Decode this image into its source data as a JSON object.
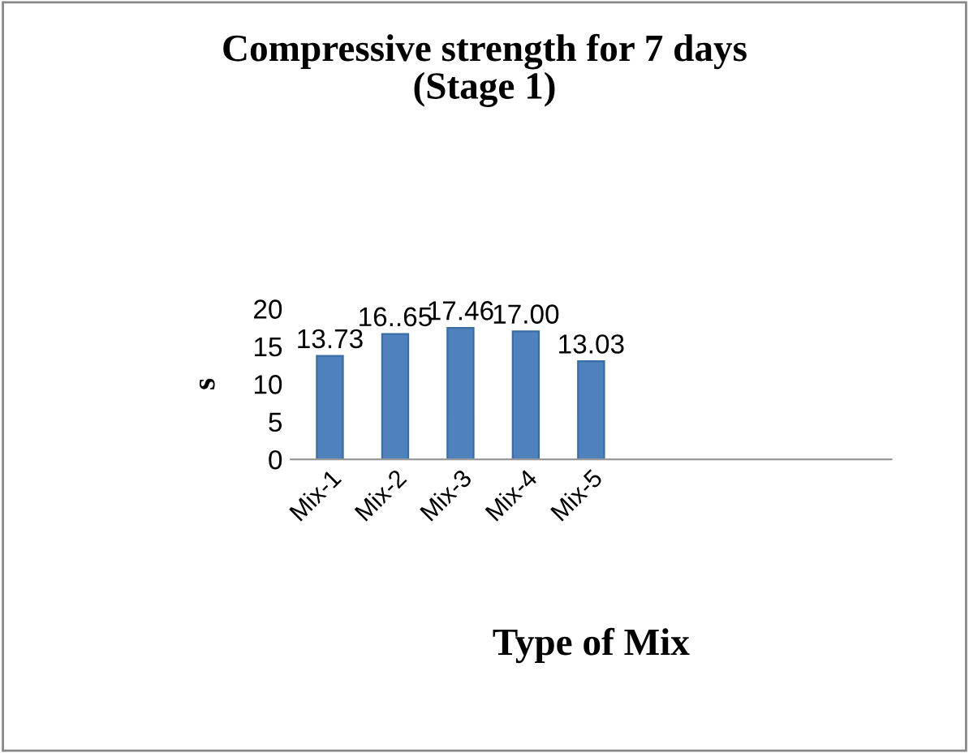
{
  "chart_data": {
    "type": "bar",
    "title": "Compressive strength for 7 days\n(Stage 1)",
    "xlabel": "Type of Mix",
    "ylabel": "s",
    "categories": [
      "Mix-1",
      "Mix-2",
      "Mix-3",
      "Mix-4",
      "Mix-5",
      null,
      null,
      null,
      null
    ],
    "values": [
      13.73,
      16.65,
      17.46,
      17.0,
      13.03,
      null,
      null,
      null,
      null
    ],
    "value_labels": [
      "13.73",
      "16..65",
      "17.46",
      "17.00",
      "13.03",
      null,
      null,
      null,
      null
    ],
    "color": "#4f81bd",
    "ylim": [
      0,
      20
    ],
    "yticks": [
      0,
      5,
      10,
      15,
      20
    ],
    "grid": false,
    "legend": false
  }
}
